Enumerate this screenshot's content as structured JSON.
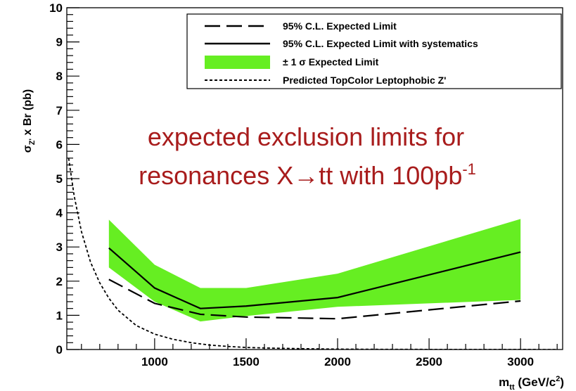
{
  "chart_data": {
    "type": "line",
    "xlabel": {
      "main": "m",
      "sub": "tt",
      "unit_open": " (GeV/c",
      "unit_sup": "2",
      "unit_close": ")"
    },
    "ylabel": {
      "main": "σ",
      "sub": "Z'",
      "rest": " x Br (pb)"
    },
    "xlim": [
      520,
      3230
    ],
    "ylim": [
      0,
      10
    ],
    "x_ticks": [
      1000,
      1500,
      2000,
      2500,
      3000
    ],
    "y_ticks": [
      0,
      1,
      2,
      3,
      4,
      5,
      6,
      7,
      8,
      9,
      10
    ],
    "grid": false,
    "legend_position": "top-right",
    "annotation": {
      "line1": "expected exclusion limits for",
      "line2_prefix": "resonances X→tt with 100pb",
      "line2_sup": "-1"
    },
    "series": [
      {
        "name": "95% C.L. Expected Limit",
        "style": "long-dash",
        "color": "#000000",
        "x": [
          750,
          1000,
          1250,
          1500,
          2000,
          3000
        ],
        "y": [
          2.05,
          1.35,
          1.03,
          0.95,
          0.9,
          1.42
        ]
      },
      {
        "name": "95% C.L. Expected Limit with systematics",
        "style": "solid",
        "color": "#000000",
        "x": [
          750,
          1000,
          1250,
          1500,
          2000,
          3000
        ],
        "y": [
          2.97,
          1.8,
          1.2,
          1.27,
          1.52,
          2.85
        ]
      },
      {
        "name": "± 1 σ Expected Limit",
        "style": "band",
        "color": "#66ee22",
        "x": [
          750,
          1000,
          1250,
          1500,
          2000,
          3000
        ],
        "upper": [
          3.8,
          2.48,
          1.8,
          1.8,
          2.22,
          3.82
        ],
        "lower": [
          2.4,
          1.4,
          0.82,
          0.98,
          1.25,
          1.45
        ]
      },
      {
        "name": "Predicted TopColor Leptophobic Z'",
        "style": "short-dash",
        "color": "#000000",
        "x": [
          530,
          560,
          600,
          650,
          700,
          750,
          800,
          900,
          1000,
          1100,
          1200,
          1300,
          1400,
          1500,
          1600,
          1800,
          2000,
          2200,
          2500,
          3000,
          3200
        ],
        "y": [
          5.6,
          4.5,
          3.45,
          2.55,
          1.95,
          1.5,
          1.15,
          0.7,
          0.45,
          0.3,
          0.2,
          0.13,
          0.09,
          0.06,
          0.045,
          0.025,
          0.012,
          0.006,
          0.003,
          0.001,
          0.0005
        ]
      }
    ]
  }
}
